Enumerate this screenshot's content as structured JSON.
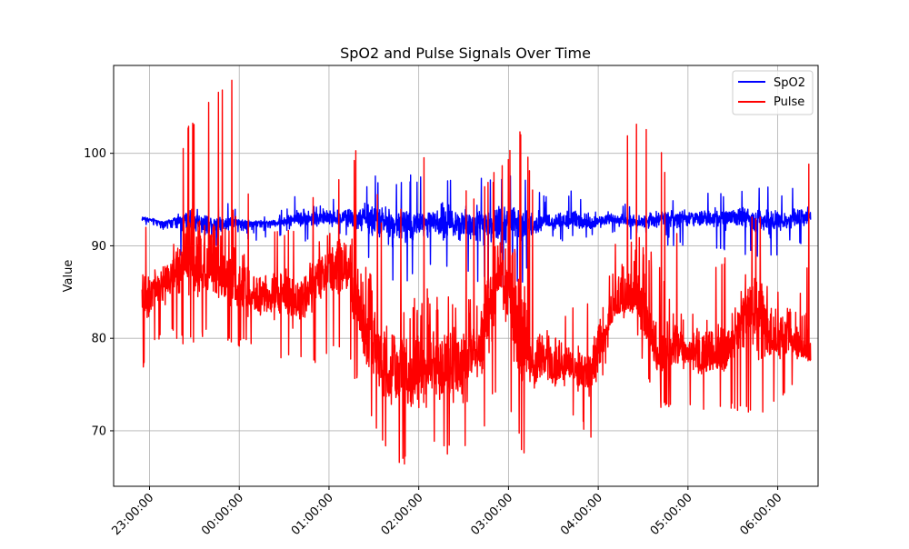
{
  "chart_data": {
    "type": "line",
    "title": "SpO2 and Pulse Signals Over Time",
    "xlabel": "",
    "ylabel": "Value",
    "xlim": [
      "22:36:00",
      "06:27:00"
    ],
    "ylim": [
      64,
      109.5
    ],
    "y_ticks": [
      70,
      80,
      90,
      100
    ],
    "x_ticks": [
      "23:00:00",
      "00:00:00",
      "01:00:00",
      "02:00:00",
      "03:00:00",
      "04:00:00",
      "05:00:00",
      "06:00:00"
    ],
    "x_tick_hours": [
      23,
      24,
      25,
      26,
      27,
      28,
      29,
      30
    ],
    "grid": true,
    "legend_position": "upper right",
    "time_range": [
      "22:55:00",
      "06:22:00"
    ],
    "series": [
      {
        "name": "SpO2",
        "color": "#0000ff",
        "x": [
          "22:55",
          "23:10",
          "23:25",
          "23:40",
          "23:55",
          "00:10",
          "00:25",
          "00:40",
          "00:55",
          "01:10",
          "01:25",
          "01:40",
          "01:55",
          "02:10",
          "02:25",
          "02:40",
          "02:55",
          "03:10",
          "03:25",
          "03:40",
          "03:55",
          "04:10",
          "04:25",
          "04:40",
          "04:55",
          "05:10",
          "05:25",
          "05:40",
          "05:55",
          "06:10",
          "06:22"
        ],
        "center": [
          93,
          92.5,
          93,
          92.5,
          92.5,
          92.5,
          92.5,
          93,
          93,
          93,
          93,
          92.5,
          92.5,
          92.5,
          92.5,
          92.5,
          92.5,
          92.5,
          92.5,
          92.5,
          92.5,
          93,
          92.5,
          93,
          93,
          93,
          93,
          93,
          92.5,
          93,
          93
        ],
        "max": [
          93.8,
          92.8,
          94.5,
          95,
          94.5,
          93,
          93.5,
          96,
          96.5,
          95.5,
          97.5,
          97.8,
          97.8,
          97.8,
          97.8,
          98,
          98.2,
          97.5,
          95.5,
          96,
          96,
          94.5,
          94.5,
          96,
          95,
          96,
          96,
          96.5,
          96.5,
          96.5,
          96
        ],
        "min": [
          92,
          90,
          88.5,
          88.5,
          90.5,
          90.5,
          91,
          90.5,
          90.5,
          90.5,
          88,
          85,
          86,
          87,
          87.5,
          86,
          84.5,
          86,
          90.5,
          90.5,
          90.5,
          91,
          90.5,
          90,
          90,
          90,
          89.5,
          89,
          88.5,
          90,
          90.5
        ]
      },
      {
        "name": "Pulse",
        "color": "#ff0000",
        "x": [
          "22:55",
          "23:10",
          "23:25",
          "23:40",
          "23:55",
          "00:10",
          "00:25",
          "00:40",
          "00:55",
          "01:10",
          "01:25",
          "01:40",
          "01:55",
          "02:10",
          "02:25",
          "02:40",
          "02:55",
          "03:10",
          "03:25",
          "03:40",
          "03:55",
          "04:10",
          "04:25",
          "04:40",
          "04:55",
          "05:10",
          "05:25",
          "05:40",
          "05:55",
          "06:10",
          "06:22"
        ],
        "center": [
          84,
          86,
          88,
          87,
          86,
          84,
          85,
          84,
          87,
          88,
          80,
          76,
          75,
          77,
          76,
          79,
          88,
          78,
          77,
          77,
          76,
          83,
          84,
          78,
          79,
          78,
          78,
          84,
          80,
          80,
          78
        ],
        "max": [
          93,
          93,
          103,
          106,
          108,
          92,
          92,
          92,
          98,
          97,
          104,
          88,
          101,
          100,
          96,
          96,
          99,
          103,
          87,
          83,
          85,
          100,
          104,
          103,
          90,
          88,
          89,
          93,
          95,
          90,
          100
        ],
        "min": [
          76.5,
          81,
          79,
          80,
          79,
          79,
          78,
          77,
          77,
          79,
          72,
          67,
          66,
          68,
          67,
          68,
          76,
          67,
          72,
          72,
          69,
          81,
          80,
          72,
          73,
          72,
          72,
          72,
          72,
          74,
          75.5
        ]
      }
    ]
  }
}
